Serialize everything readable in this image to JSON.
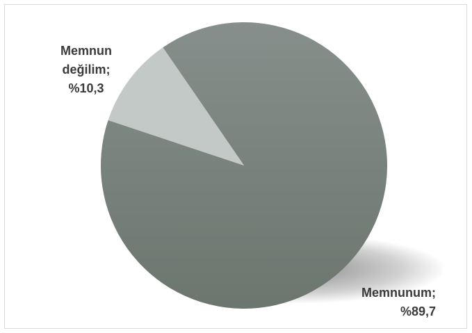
{
  "chart_data": {
    "type": "pie",
    "title": "",
    "slices": [
      {
        "label_lines": [
          "Memnunum;",
          "%89,7"
        ],
        "value": 89.7,
        "color": "#7a8580"
      },
      {
        "label_lines": [
          "Memnun",
          "değilim;",
          "%10,3"
        ],
        "value": 10.3,
        "color": "#c2c9c7"
      }
    ],
    "legend": "none"
  }
}
